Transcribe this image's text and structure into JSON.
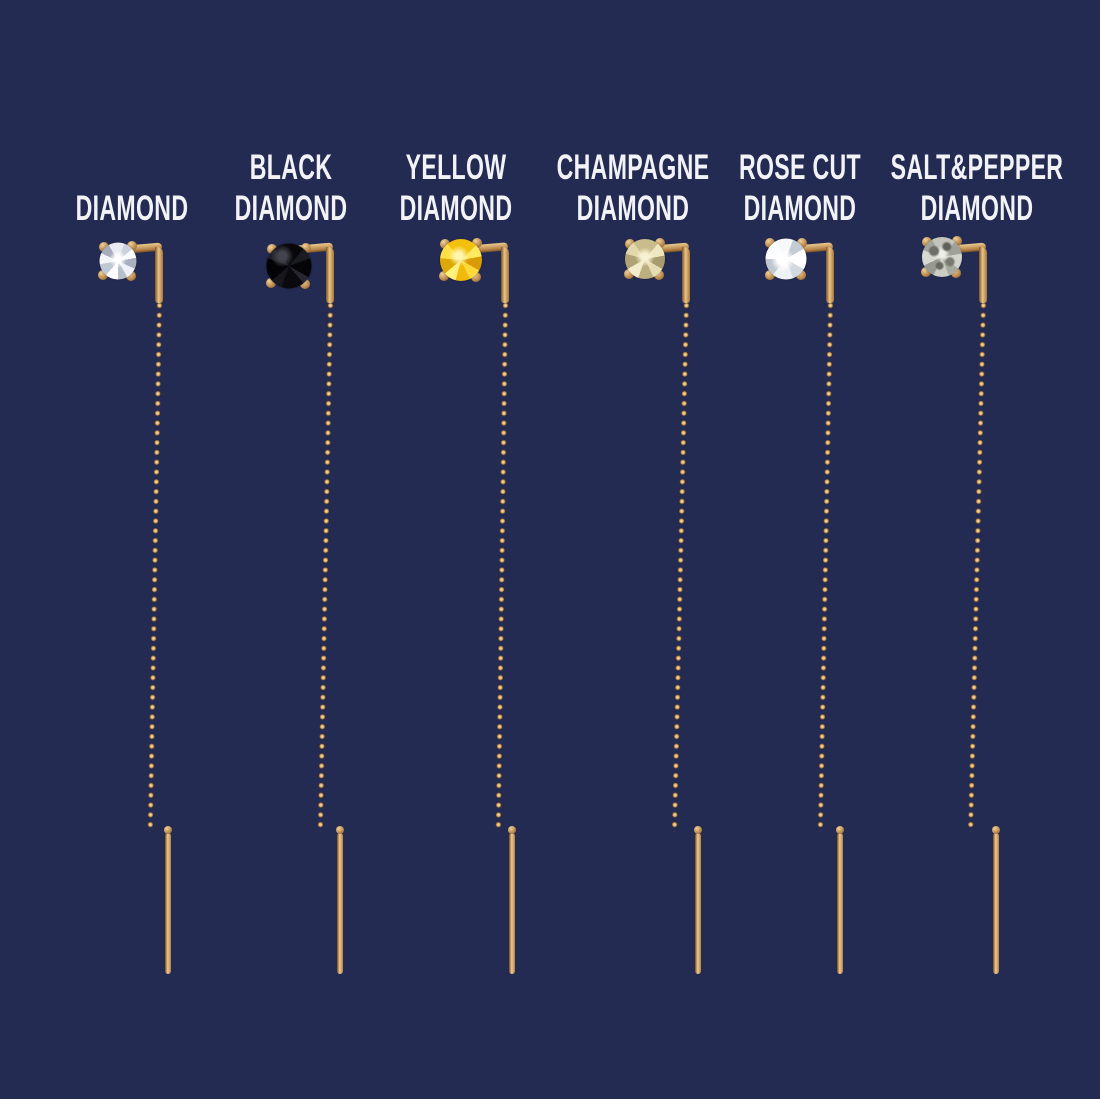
{
  "page": {
    "background_color": "#242b53",
    "label_text_color": "#f2f3f6",
    "gold_color": "#c2924f"
  },
  "products": [
    {
      "id": "diamond",
      "label_top": "",
      "label_bottom": "DIAMOND",
      "stone": "white diamond",
      "stone_color": "#dfe3ea"
    },
    {
      "id": "black-diamond",
      "label_top": "BLACK",
      "label_bottom": "DIAMOND",
      "stone": "black diamond",
      "stone_color": "#101014"
    },
    {
      "id": "yellow-diamond",
      "label_top": "YELLOW",
      "label_bottom": "DIAMOND",
      "stone": "yellow diamond",
      "stone_color": "#f6cf1e"
    },
    {
      "id": "champagne-diamond",
      "label_top": "CHAMPAGNE",
      "label_bottom": "DIAMOND",
      "stone": "champagne diamond",
      "stone_color": "#d8cfa2"
    },
    {
      "id": "rose-cut-diamond",
      "label_top": "ROSE CUT",
      "label_bottom": "DIAMOND",
      "stone": "rose cut diamond",
      "stone_color": "#e9edf0"
    },
    {
      "id": "salt-pepper-diamond",
      "label_top": "SALT&PEPPER",
      "label_bottom": "DIAMOND",
      "stone": "salt and pepper diamond",
      "stone_color": "#b4b6ae"
    }
  ]
}
